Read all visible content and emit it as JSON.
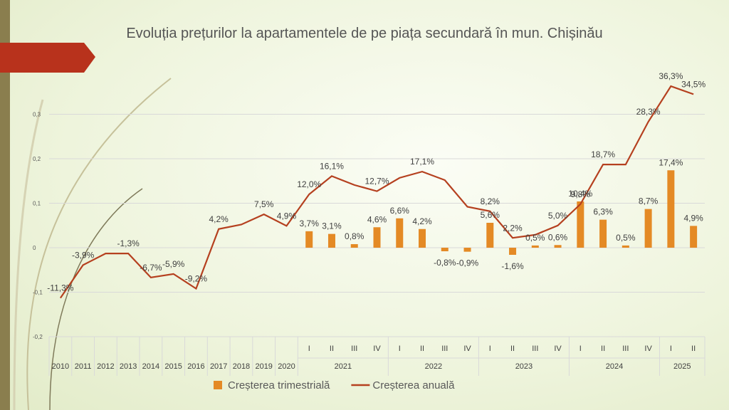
{
  "chart_data": {
    "type": "bar-line",
    "title": "Evoluția prețurilor la apartamentele de pe piața secundară în mun. Chișinău",
    "categories": [
      "2010",
      "2011",
      "2012",
      "2013",
      "2014",
      "2015",
      "2016",
      "2017",
      "2018",
      "2019",
      "2020",
      "I",
      "II",
      "III",
      "IV",
      "I",
      "II",
      "III",
      "IV",
      "I",
      "II",
      "III",
      "IV",
      "I",
      "II",
      "III",
      "IV",
      "I",
      "II"
    ],
    "category_groups": [
      {
        "label": "2021",
        "count": 4
      },
      {
        "label": "2022",
        "count": 4
      },
      {
        "label": "2023",
        "count": 4
      },
      {
        "label": "2024",
        "count": 4
      },
      {
        "label": "2025",
        "count": 2
      }
    ],
    "ylim": [
      -0.2,
      0.4
    ],
    "yticks": [
      {
        "value": -0.2,
        "label": "-0,2"
      },
      {
        "value": -0.1,
        "label": "-0,1"
      },
      {
        "value": 0,
        "label": "0"
      },
      {
        "value": 0.1,
        "label": "0,1"
      },
      {
        "value": 0.2,
        "label": "0,2"
      },
      {
        "value": 0.3,
        "label": "0,3"
      }
    ],
    "grid": true,
    "series": [
      {
        "name": "Creșterea trimestrială",
        "kind": "bar",
        "color": "#e48a25",
        "values": [
          null,
          null,
          null,
          null,
          null,
          null,
          null,
          null,
          null,
          null,
          null,
          0.037,
          0.031,
          0.008,
          0.046,
          0.066,
          0.042,
          -0.008,
          -0.009,
          0.056,
          -0.016,
          0.005,
          0.006,
          0.104,
          0.063,
          0.005,
          0.087,
          0.174,
          0.049
        ],
        "value_labels": [
          null,
          null,
          null,
          null,
          null,
          null,
          null,
          null,
          null,
          null,
          null,
          "3,7%",
          "3,1%",
          "0,8%",
          "4,6%",
          "6,6%",
          "4,2%",
          "-0,8%",
          "-0,9%",
          "5,6%",
          "-1,6%",
          "0,5%",
          "0,6%",
          "10,4%",
          "6,3%",
          "0,5%",
          "8,7%",
          "17,4%",
          "4,9%"
        ]
      },
      {
        "name": "Creșterea anuală",
        "kind": "line",
        "color": "#b5401f",
        "values": [
          -0.113,
          -0.039,
          -0.013,
          -0.013,
          -0.067,
          -0.059,
          -0.092,
          0.042,
          0.052,
          0.075,
          0.049,
          0.12,
          0.161,
          0.141,
          0.127,
          0.157,
          0.171,
          0.152,
          0.092,
          0.082,
          0.022,
          0.029,
          0.05,
          0.098,
          0.187,
          0.187,
          0.283,
          0.363,
          0.345
        ],
        "value_labels": [
          "-11,3%",
          "-3,9%",
          null,
          "-1,3%",
          "-6,7%",
          "-5,9%",
          "-9,2%",
          "4,2%",
          null,
          "7,5%",
          "4,9%",
          "12,0%",
          "16,1%",
          null,
          "12,7%",
          null,
          "17,1%",
          null,
          null,
          "8,2%",
          "2,2%",
          null,
          "5,0%",
          "9,8%",
          "18,7%",
          null,
          "28,3%",
          "36,3%",
          "34,5%"
        ]
      }
    ]
  }
}
